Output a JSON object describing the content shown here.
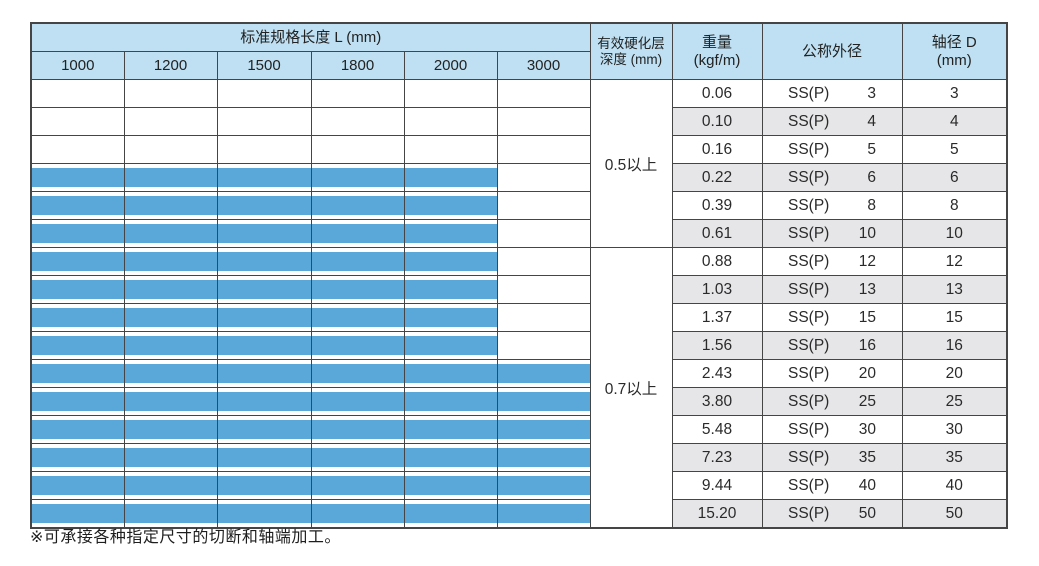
{
  "table": {
    "header": {
      "length_group_label": "标准规格长度 L (mm)",
      "length_columns": [
        "1000",
        "1200",
        "1500",
        "1800",
        "2000",
        "3000"
      ],
      "hardening_label_line1": "有效硬化层",
      "hardening_label_line2": "深度 (mm)",
      "weight_label_line1": "重量",
      "weight_label_line2": "(kgf/m)",
      "nominal_od_label": "公称外径",
      "shaft_dia_label_line1": "轴径 D",
      "shaft_dia_label_line2": "(mm)"
    },
    "hardening_groups": [
      {
        "label": "0.5以上",
        "rows": 6
      },
      {
        "label": "0.7以上",
        "rows": 10
      }
    ],
    "rows": [
      {
        "weight": "0.06",
        "series": "SS(P)",
        "size": "3",
        "dia": "3",
        "bar_cols": 0
      },
      {
        "weight": "0.10",
        "series": "SS(P)",
        "size": "4",
        "dia": "4",
        "bar_cols": 0
      },
      {
        "weight": "0.16",
        "series": "SS(P)",
        "size": "5",
        "dia": "5",
        "bar_cols": 0
      },
      {
        "weight": "0.22",
        "series": "SS(P)",
        "size": "6",
        "dia": "6",
        "bar_cols": 5
      },
      {
        "weight": "0.39",
        "series": "SS(P)",
        "size": "8",
        "dia": "8",
        "bar_cols": 5
      },
      {
        "weight": "0.61",
        "series": "SS(P)",
        "size": "10",
        "dia": "10",
        "bar_cols": 5
      },
      {
        "weight": "0.88",
        "series": "SS(P)",
        "size": "12",
        "dia": "12",
        "bar_cols": 5
      },
      {
        "weight": "1.03",
        "series": "SS(P)",
        "size": "13",
        "dia": "13",
        "bar_cols": 5
      },
      {
        "weight": "1.37",
        "series": "SS(P)",
        "size": "15",
        "dia": "15",
        "bar_cols": 5
      },
      {
        "weight": "1.56",
        "series": "SS(P)",
        "size": "16",
        "dia": "16",
        "bar_cols": 5
      },
      {
        "weight": "2.43",
        "series": "SS(P)",
        "size": "20",
        "dia": "20",
        "bar_cols": 6
      },
      {
        "weight": "3.80",
        "series": "SS(P)",
        "size": "25",
        "dia": "25",
        "bar_cols": 6
      },
      {
        "weight": "5.48",
        "series": "SS(P)",
        "size": "30",
        "dia": "30",
        "bar_cols": 6
      },
      {
        "weight": "7.23",
        "series": "SS(P)",
        "size": "35",
        "dia": "35",
        "bar_cols": 6
      },
      {
        "weight": "9.44",
        "series": "SS(P)",
        "size": "40",
        "dia": "40",
        "bar_cols": 6
      },
      {
        "weight": "15.20",
        "series": "SS(P)",
        "size": "50",
        "dia": "50",
        "bar_cols": 6
      }
    ]
  },
  "footnote": "※可承接各种指定尺寸的切断和轴端加工。",
  "colors": {
    "header_bg": "#bee0f2",
    "bar_blue": "#5aa7d9",
    "row_alt_gray": "#e6e6e8",
    "border": "#454545"
  }
}
